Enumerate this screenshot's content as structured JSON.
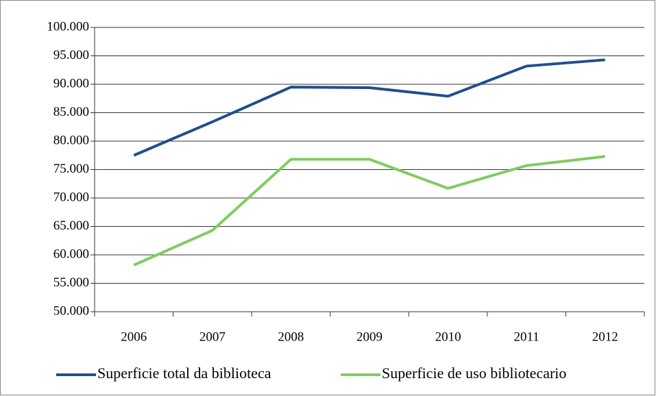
{
  "chart_data": {
    "type": "line",
    "categories": [
      "2006",
      "2007",
      "2008",
      "2009",
      "2010",
      "2011",
      "2012"
    ],
    "series": [
      {
        "name": "Superficie total da biblioteca",
        "color": "#1f4e8c",
        "values": [
          77500,
          83400,
          89500,
          89400,
          87900,
          93200,
          94300
        ]
      },
      {
        "name": "Superficie de uso bibliotecario",
        "color": "#7fcc5f",
        "values": [
          58200,
          64300,
          76800,
          76800,
          71700,
          75700,
          77300
        ]
      }
    ],
    "ylim": [
      50000,
      100000
    ],
    "yticks": [
      {
        "value": 50000,
        "label": "50.000"
      },
      {
        "value": 55000,
        "label": "55.000"
      },
      {
        "value": 60000,
        "label": "60.000"
      },
      {
        "value": 65000,
        "label": "65.000"
      },
      {
        "value": 70000,
        "label": "70.000"
      },
      {
        "value": 75000,
        "label": "75.000"
      },
      {
        "value": 80000,
        "label": "80.000"
      },
      {
        "value": 85000,
        "label": "85.000"
      },
      {
        "value": 90000,
        "label": "90.000"
      },
      {
        "value": 95000,
        "label": "95.000"
      },
      {
        "value": 100000,
        "label": "100.000"
      }
    ],
    "grid": true,
    "legend": "bottom"
  }
}
